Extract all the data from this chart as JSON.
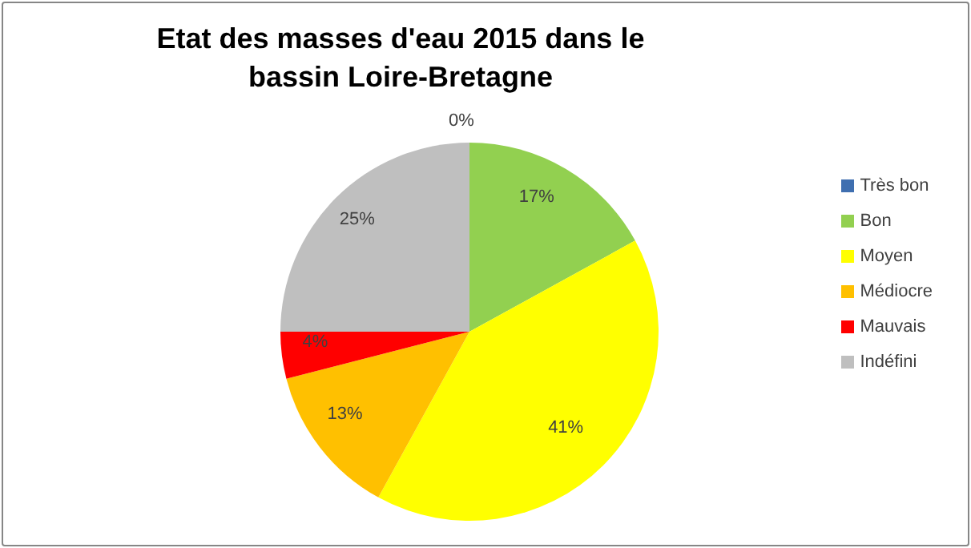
{
  "chart_data": {
    "type": "pie",
    "title": "Etat des masses d'eau 2015 dans le bassin Loire-Bretagne",
    "categories": [
      "Très bon",
      "Bon",
      "Moyen",
      "Médiocre",
      "Mauvais",
      "Indéfini"
    ],
    "values": [
      0,
      17,
      41,
      13,
      4,
      25
    ],
    "colors": [
      "#3f6fb0",
      "#92d050",
      "#ffff00",
      "#ffc000",
      "#ff0000",
      "#bfbfbf"
    ],
    "value_labels": [
      "0%",
      "17%",
      "41%",
      "13%",
      "4%",
      "25%"
    ],
    "legend": "right"
  }
}
